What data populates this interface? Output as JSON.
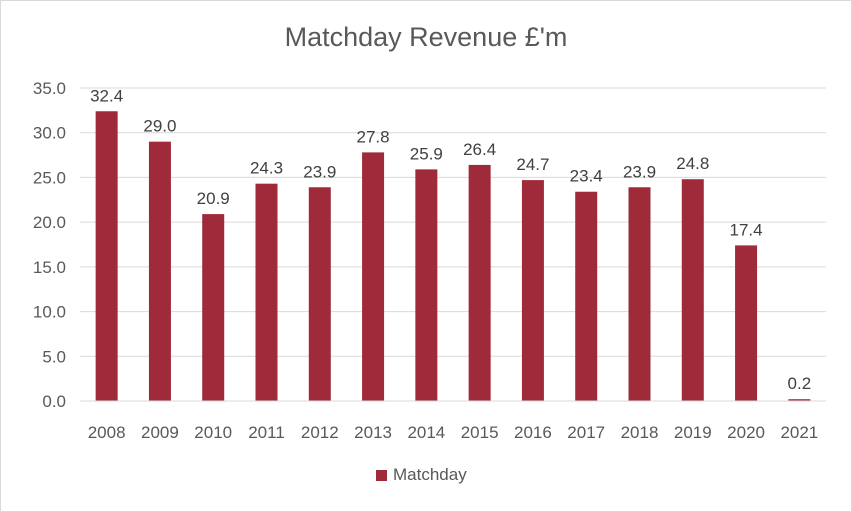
{
  "chart_data": {
    "type": "bar",
    "title": "Matchday Revenue £'m",
    "xlabel": "",
    "ylabel": "",
    "categories": [
      "2008",
      "2009",
      "2010",
      "2011",
      "2012",
      "2013",
      "2014",
      "2015",
      "2016",
      "2017",
      "2018",
      "2019",
      "2020",
      "2021"
    ],
    "series": [
      {
        "name": "Matchday",
        "values": [
          32.4,
          29.0,
          20.9,
          24.3,
          23.9,
          27.8,
          25.9,
          26.4,
          24.7,
          23.4,
          23.9,
          24.8,
          17.4,
          0.2
        ],
        "labels": [
          "32.4",
          "29.0",
          "20.9",
          "24.3",
          "23.9",
          "27.8",
          "25.9",
          "26.4",
          "24.7",
          "23.4",
          "23.9",
          "24.8",
          "17.4",
          "0.2"
        ],
        "color": "#9e2a3a"
      }
    ],
    "ylim": [
      0,
      35
    ],
    "yticks": [
      "0.0",
      "5.0",
      "10.0",
      "15.0",
      "20.0",
      "25.0",
      "30.0",
      "35.0"
    ],
    "grid": true,
    "legend_position": "bottom"
  }
}
